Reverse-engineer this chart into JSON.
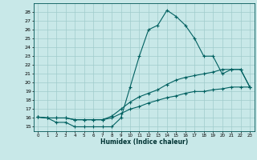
{
  "title": "",
  "xlabel": "Humidex (Indice chaleur)",
  "background_color": "#c8e8e8",
  "line_color": "#006060",
  "grid_color": "#a0cccc",
  "xlim": [
    -0.5,
    23.5
  ],
  "ylim": [
    14.5,
    29.0
  ],
  "yticks": [
    15,
    16,
    17,
    18,
    19,
    20,
    21,
    22,
    23,
    24,
    25,
    26,
    27,
    28
  ],
  "xticks": [
    0,
    1,
    2,
    3,
    4,
    5,
    6,
    7,
    8,
    9,
    10,
    11,
    12,
    13,
    14,
    15,
    16,
    17,
    18,
    19,
    20,
    21,
    22,
    23
  ],
  "curve_max": {
    "x": [
      0,
      1,
      2,
      3,
      4,
      5,
      6,
      7,
      8,
      9,
      10,
      11,
      12,
      13,
      14,
      15,
      16,
      17,
      18,
      19,
      20,
      21,
      22,
      23
    ],
    "y": [
      16.1,
      16.0,
      15.5,
      15.5,
      15.0,
      15.0,
      15.0,
      15.0,
      15.0,
      16.0,
      19.5,
      23.0,
      26.0,
      26.5,
      28.2,
      27.5,
      26.5,
      25.0,
      23.0,
      23.0,
      21.0,
      21.5,
      21.5,
      19.5
    ]
  },
  "curve_mean": {
    "x": [
      0,
      1,
      2,
      3,
      4,
      5,
      6,
      7,
      8,
      9,
      10,
      11,
      12,
      13,
      14,
      15,
      16,
      17,
      18,
      19,
      20,
      21,
      22,
      23
    ],
    "y": [
      16.1,
      16.0,
      16.0,
      16.0,
      15.8,
      15.8,
      15.8,
      15.8,
      16.2,
      17.0,
      17.8,
      18.4,
      18.8,
      19.2,
      19.8,
      20.3,
      20.6,
      20.8,
      21.0,
      21.2,
      21.5,
      21.5,
      21.5,
      19.5
    ]
  },
  "curve_min": {
    "x": [
      0,
      1,
      2,
      3,
      4,
      5,
      6,
      7,
      8,
      9,
      10,
      11,
      12,
      13,
      14,
      15,
      16,
      17,
      18,
      19,
      20,
      21,
      22,
      23
    ],
    "y": [
      16.1,
      16.0,
      16.0,
      16.0,
      15.8,
      15.8,
      15.8,
      15.8,
      16.0,
      16.5,
      17.0,
      17.3,
      17.7,
      18.0,
      18.3,
      18.5,
      18.8,
      19.0,
      19.0,
      19.2,
      19.3,
      19.5,
      19.5,
      19.5
    ]
  }
}
